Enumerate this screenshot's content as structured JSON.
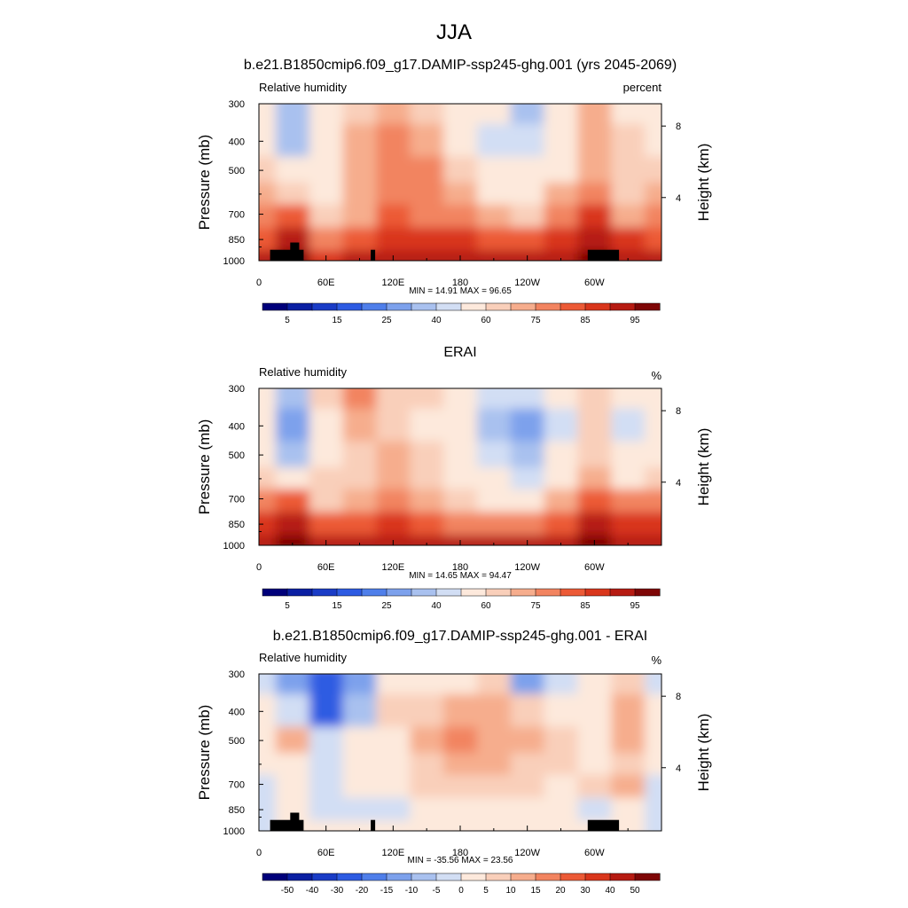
{
  "figure": {
    "title": "JJA",
    "left_label": "Pressure (mb)",
    "right_label": "Height (km)",
    "lon_ticks": [
      "0",
      "60E",
      "120E",
      "180",
      "120W",
      "60W"
    ],
    "pressure_ticks": [
      "300",
      "400",
      "500",
      "700",
      "850",
      "1000"
    ],
    "height_ticks": [
      "8",
      "4"
    ]
  },
  "panels": [
    {
      "title": "b.e21.B1850cmip6.f09_g17.DAMIP-ssp245-ghg.001 (yrs 2045-2069)",
      "left_subtitle": "Relative humidity",
      "right_subtitle": "percent",
      "stats": "MIN =  14.91  MAX =  96.65",
      "terrain": true,
      "colorbar_labels": [
        "5",
        "15",
        "25",
        "40",
        "60",
        "75",
        "85",
        "95"
      ]
    },
    {
      "title": "ERAI",
      "left_subtitle": "Relative humidity",
      "right_subtitle": "%",
      "stats": "MIN =  14.65  MAX =  94.47",
      "terrain": false,
      "colorbar_labels": [
        "5",
        "15",
        "25",
        "40",
        "60",
        "75",
        "85",
        "95"
      ]
    },
    {
      "title": "b.e21.B1850cmip6.f09_g17.DAMIP-ssp245-ghg.001 - ERAI",
      "left_subtitle": "Relative humidity",
      "right_subtitle": "%",
      "stats": "MIN = -35.56  MAX =  23.56",
      "terrain": true,
      "colorbar_labels": [
        "-50",
        "-40",
        "-30",
        "-20",
        "-15",
        "-10",
        "-5",
        "0",
        "5",
        "10",
        "15",
        "20",
        "30",
        "40",
        "50"
      ]
    }
  ],
  "chart_data": [
    {
      "type": "heatmap",
      "title": "b.e21.B1850cmip6.f09_g17.DAMIP-ssp245-ghg.001 (yrs 2045-2069)",
      "variable": "Relative humidity",
      "units": "percent",
      "xlabel": "",
      "ylabel": "Pressure (mb)",
      "ylabel_right": "Height (km)",
      "x": [
        0,
        30,
        60,
        90,
        120,
        150,
        180,
        210,
        240,
        270,
        300,
        330,
        360
      ],
      "y": [
        300,
        400,
        500,
        600,
        700,
        850,
        1000
      ],
      "z": [
        [
          52,
          32,
          52,
          60,
          68,
          62,
          55,
          50,
          35,
          50,
          68,
          55,
          52
        ],
        [
          55,
          35,
          55,
          65,
          72,
          66,
          58,
          45,
          40,
          50,
          65,
          60,
          55
        ],
        [
          62,
          52,
          55,
          66,
          70,
          70,
          60,
          50,
          50,
          58,
          68,
          62,
          62
        ],
        [
          66,
          62,
          55,
          66,
          74,
          70,
          65,
          58,
          55,
          66,
          72,
          64,
          66
        ],
        [
          70,
          78,
          60,
          68,
          76,
          72,
          70,
          66,
          62,
          72,
          80,
          68,
          70
        ],
        [
          76,
          85,
          72,
          78,
          80,
          80,
          80,
          78,
          76,
          80,
          85,
          80,
          76
        ],
        [
          86,
          90,
          84,
          86,
          88,
          88,
          88,
          88,
          86,
          86,
          90,
          88,
          86
        ]
      ],
      "zlim": [
        14.91,
        96.65
      ],
      "levels": [
        5,
        10,
        15,
        20,
        25,
        30,
        40,
        50,
        60,
        65,
        70,
        75,
        80,
        85,
        90,
        95
      ],
      "min": 14.91,
      "max": 96.65
    },
    {
      "type": "heatmap",
      "title": "ERAI",
      "variable": "Relative humidity",
      "units": "%",
      "xlabel": "",
      "ylabel": "Pressure (mb)",
      "ylabel_right": "Height (km)",
      "x": [
        0,
        30,
        60,
        90,
        120,
        150,
        180,
        210,
        240,
        270,
        300,
        330,
        360
      ],
      "y": [
        300,
        400,
        500,
        600,
        700,
        850,
        1000
      ],
      "z": [
        [
          55,
          38,
          60,
          72,
          62,
          60,
          55,
          48,
          45,
          52,
          60,
          50,
          55
        ],
        [
          50,
          25,
          55,
          68,
          62,
          58,
          50,
          35,
          25,
          45,
          60,
          42,
          50
        ],
        [
          58,
          35,
          56,
          64,
          66,
          60,
          52,
          40,
          35,
          50,
          62,
          52,
          58
        ],
        [
          64,
          58,
          60,
          64,
          68,
          62,
          55,
          50,
          48,
          58,
          66,
          58,
          64
        ],
        [
          72,
          76,
          64,
          68,
          72,
          66,
          60,
          58,
          56,
          66,
          75,
          70,
          72
        ],
        [
          82,
          85,
          76,
          78,
          82,
          78,
          74,
          72,
          72,
          78,
          86,
          80,
          82
        ],
        [
          88,
          90,
          86,
          88,
          88,
          88,
          86,
          86,
          86,
          86,
          90,
          88,
          88
        ]
      ],
      "zlim": [
        14.65,
        94.47
      ],
      "levels": [
        5,
        10,
        15,
        20,
        25,
        30,
        40,
        50,
        60,
        65,
        70,
        75,
        80,
        85,
        90,
        95
      ],
      "min": 14.65,
      "max": 94.47
    },
    {
      "type": "heatmap",
      "title": "b.e21.B1850cmip6.f09_g17.DAMIP-ssp245-ghg.001 - ERAI",
      "variable": "Relative humidity",
      "units": "%",
      "xlabel": "",
      "ylabel": "Pressure (mb)",
      "ylabel_right": "Height (km)",
      "x": [
        0,
        30,
        60,
        90,
        120,
        150,
        180,
        210,
        240,
        270,
        300,
        330,
        360
      ],
      "y": [
        300,
        400,
        500,
        600,
        700,
        850,
        1000
      ],
      "z": [
        [
          -3,
          -12,
          -25,
          -14,
          4,
          2,
          3,
          5,
          -12,
          -4,
          2,
          6,
          -3
        ],
        [
          3,
          -5,
          -30,
          -8,
          6,
          8,
          12,
          14,
          8,
          2,
          1,
          12,
          3
        ],
        [
          2,
          12,
          -5,
          0,
          2,
          10,
          18,
          14,
          12,
          6,
          4,
          14,
          2
        ],
        [
          0,
          3,
          -4,
          0,
          3,
          6,
          10,
          10,
          8,
          6,
          4,
          8,
          0
        ],
        [
          -1,
          2,
          -3,
          0,
          2,
          6,
          8,
          8,
          6,
          4,
          6,
          12,
          -1
        ],
        [
          -3,
          0,
          -2,
          -2,
          -2,
          2,
          4,
          4,
          4,
          2,
          -2,
          2,
          -3
        ],
        [
          -1,
          1,
          0,
          0,
          0,
          0,
          1,
          2,
          1,
          0,
          1,
          0,
          -1
        ]
      ],
      "zlim": [
        -35.56,
        23.56
      ],
      "levels": [
        -50,
        -40,
        -30,
        -20,
        -15,
        -10,
        -5,
        0,
        5,
        10,
        15,
        20,
        30,
        40,
        50
      ],
      "min": -35.56,
      "max": 23.56
    }
  ],
  "palettes": {
    "rh": [
      "#00007a",
      "#0a1fa2",
      "#1a3cc6",
      "#2d5be2",
      "#4f7fea",
      "#7da1ec",
      "#a9c1ef",
      "#d2def4",
      "#fde9dc",
      "#f9cfba",
      "#f6ad8d",
      "#f28460",
      "#ec5a36",
      "#d9361c",
      "#b61b12",
      "#7e0606"
    ],
    "diff": [
      "#00007a",
      "#0a1fa2",
      "#1a3cc6",
      "#2d5be2",
      "#4f7fea",
      "#7da1ec",
      "#a9c1ef",
      "#d2def4",
      "#fde9dc",
      "#f9cfba",
      "#f6ad8d",
      "#f28460",
      "#ec5a36",
      "#d9361c",
      "#b61b12",
      "#7e0606"
    ]
  }
}
